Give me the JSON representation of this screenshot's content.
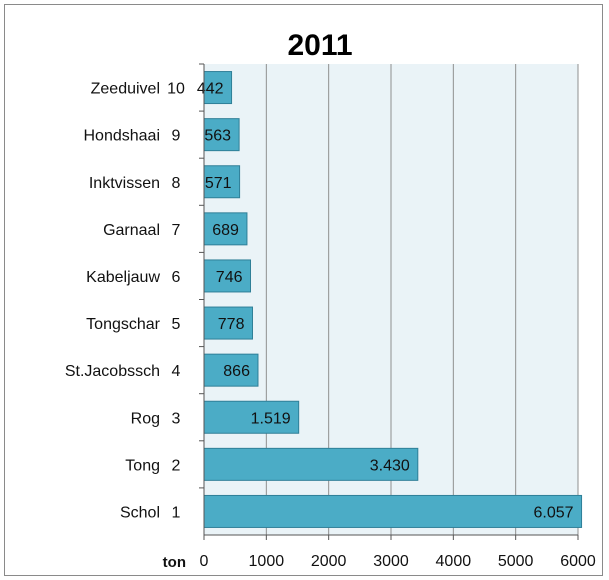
{
  "chart_data": {
    "type": "bar",
    "orientation": "horizontal",
    "title": "2011",
    "xlabel": "ton",
    "ylabel": "",
    "xlim": [
      0,
      6000
    ],
    "xticks": [
      "0",
      "1000",
      "2000",
      "3000",
      "4000",
      "5000",
      "6000"
    ],
    "grid": true,
    "plot_background": "#eaf3f7",
    "bar_color": "#4bacc6",
    "categories": [
      "Zeeduivel",
      "Hondshaai",
      "Inktvissen",
      "Garnaal",
      "Kabeljauw",
      "Tongschar",
      "St.Jacobssch",
      "Rog",
      "Tong",
      "Schol"
    ],
    "ranks": [
      "10",
      "9",
      "8",
      "7",
      "6",
      "5",
      "4",
      "3",
      "2",
      "1"
    ],
    "values": [
      442,
      563,
      571,
      689,
      746,
      778,
      866,
      1519,
      3430,
      6057
    ],
    "value_labels": [
      "442",
      "563",
      "571",
      "689",
      "746",
      "778",
      "866",
      "1.519",
      "3.430",
      "6.057"
    ]
  }
}
